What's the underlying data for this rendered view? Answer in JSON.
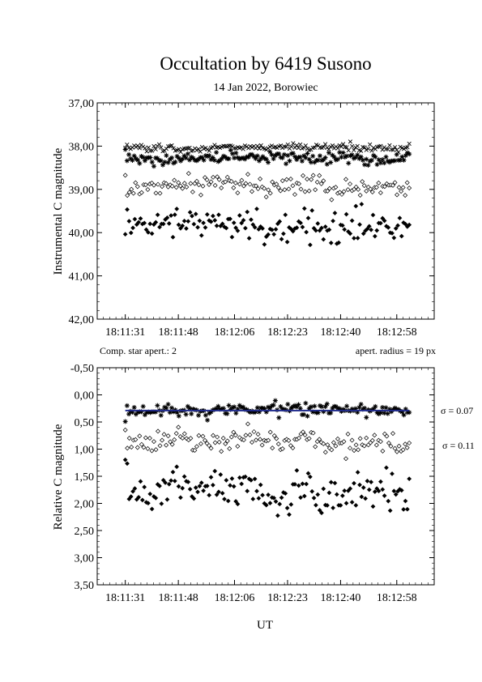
{
  "page": {
    "title": "Occultation by 6419 Susono",
    "subtitle": "14 Jan 2022, Borowiec",
    "xlabel": "UT",
    "note_left": "Comp. star apert.: 2",
    "note_right": "apert. radius = 19 px"
  },
  "chart_data": [
    {
      "type": "scatter",
      "ylabel": "Instrumental C magnitude",
      "xlim": [
        "18:11:22",
        "18:13:10"
      ],
      "ylim": [
        37.0,
        42.0
      ],
      "y_inverted": true,
      "grid": false,
      "x_ticks": [
        "18:11:31",
        "18:11:48",
        "18:12:06",
        "18:12:23",
        "18:12:40",
        "18:12:58"
      ],
      "y_ticks": [
        "37,00",
        "38,00",
        "39,00",
        "40,00",
        "41,00",
        "42,00"
      ],
      "series": [
        {
          "marker": "x-cross",
          "x_range": [
            "18:11:31",
            "18:13:02"
          ],
          "points": 160,
          "mean": 38.03,
          "scatter": 0.05
        },
        {
          "marker": "asterisk",
          "x_range": [
            "18:11:31",
            "18:13:02"
          ],
          "points": 160,
          "mean": 38.28,
          "scatter": 0.08
        },
        {
          "marker": "open-diamond",
          "x_range": [
            "18:11:31",
            "18:13:02"
          ],
          "points": 140,
          "mean": 38.92,
          "scatter": 0.12
        },
        {
          "marker": "filled-diamond",
          "x_range": [
            "18:11:31",
            "18:13:02"
          ],
          "points": 150,
          "mean": 39.83,
          "scatter": 0.22
        }
      ]
    },
    {
      "type": "scatter",
      "ylabel": "Relative C magnitude",
      "xlim": [
        "18:11:22",
        "18:13:10"
      ],
      "ylim": [
        -0.5,
        3.5
      ],
      "y_inverted": true,
      "grid": false,
      "x_ticks": [
        "18:11:31",
        "18:11:48",
        "18:12:06",
        "18:12:23",
        "18:12:40",
        "18:12:58"
      ],
      "y_ticks": [
        "-0,50",
        "0,00",
        "0,50",
        "1,00",
        "1,50",
        "2,00",
        "2,50",
        "3,00",
        "3,50"
      ],
      "series": [
        {
          "marker": "asterisk",
          "x_range": [
            "18:11:31",
            "18:13:02"
          ],
          "points": 160,
          "mean": 0.28,
          "scatter": 0.07,
          "color": "#000000"
        },
        {
          "marker": "line",
          "x_range": [
            "18:11:31",
            "18:13:02"
          ],
          "mean": 0.29,
          "color": "#1f2a8c"
        },
        {
          "marker": "open-diamond",
          "x_range": [
            "18:11:31",
            "18:13:02"
          ],
          "points": 140,
          "mean": 0.85,
          "scatter": 0.11
        },
        {
          "marker": "filled-diamond",
          "x_range": [
            "18:11:31",
            "18:13:02"
          ],
          "points": 150,
          "mean": 1.78,
          "scatter": 0.22
        }
      ],
      "annotations": [
        "σ = 0.07",
        "σ = 0.11"
      ]
    }
  ]
}
